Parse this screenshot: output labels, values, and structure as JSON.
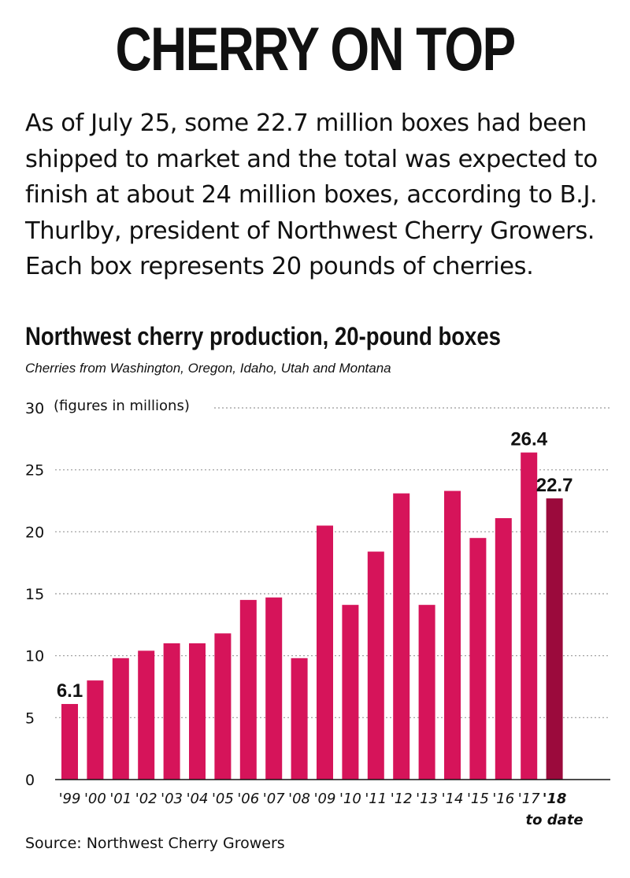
{
  "headline": "CHERRY ON TOP",
  "intro": "As of July 25, some 22.7 million boxes had been shipped to market and the total was expected to finish at about 24 million boxes, according to B.J. Thurlby, president of Northwest Cherry Growers. Each box represents 20 pounds of cherries.",
  "source": "Source: Northwest Cherry Growers",
  "chart_data": {
    "type": "bar",
    "title": "Northwest cherry production, 20-pound boxes",
    "subtitle": "Cherries from Washington, Oregon, Idaho, Utah and Montana",
    "unit_note": "(figures in millions)",
    "categories": [
      "'99",
      "'00",
      "'01",
      "'02",
      "'03",
      "'04",
      "'05",
      "'06",
      "'07",
      "'08",
      "'09",
      "'10",
      "'11",
      "'12",
      "'13",
      "'14",
      "'15",
      "'16",
      "'17",
      "'18"
    ],
    "last_category_note": "to date",
    "values": [
      6.1,
      8.0,
      9.8,
      10.4,
      11.0,
      11.0,
      11.8,
      14.5,
      14.7,
      9.8,
      20.5,
      14.1,
      18.4,
      23.1,
      14.1,
      23.3,
      19.5,
      21.1,
      26.4,
      22.7
    ],
    "ylim": [
      0,
      30
    ],
    "yticks": [
      0,
      5,
      10,
      15,
      20,
      25,
      30
    ],
    "grid": true,
    "labeled_values": [
      {
        "category": "'99",
        "label": "6.1"
      },
      {
        "category": "'17",
        "label": "26.4"
      },
      {
        "category": "'18",
        "label": "22.7"
      }
    ],
    "colors": {
      "bar": "#d6145a",
      "highlight_bar": "#9b0a3c",
      "grid": "#999999"
    },
    "highlight_category": "'18"
  }
}
